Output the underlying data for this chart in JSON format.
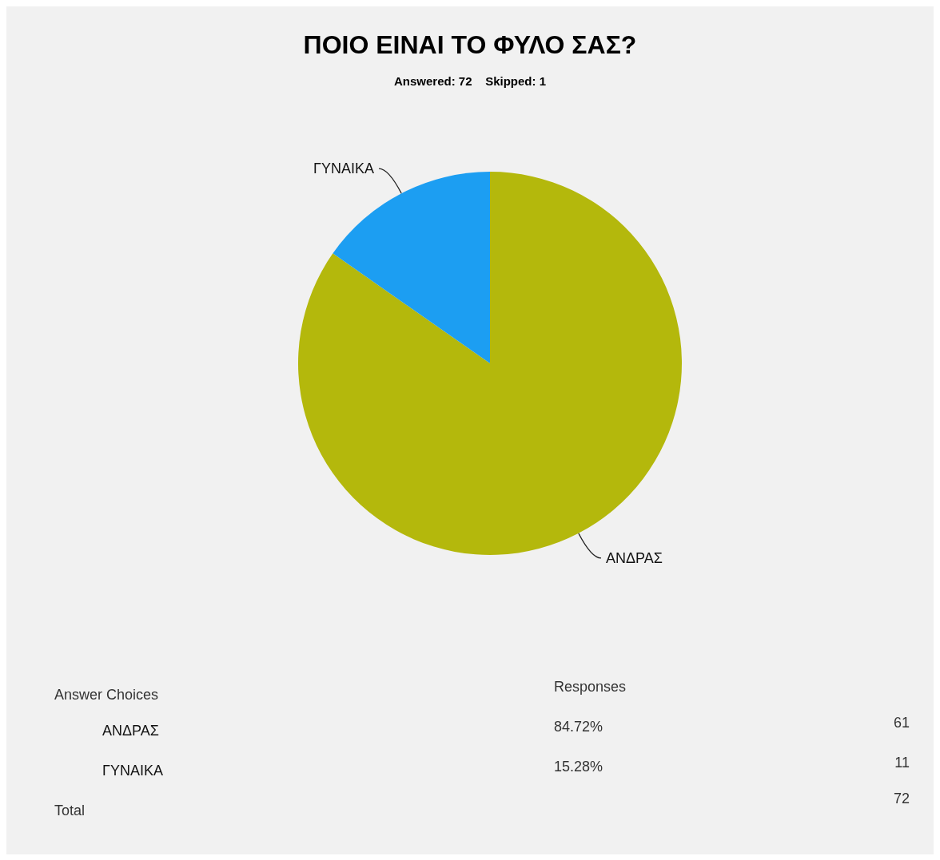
{
  "chart_data": {
    "type": "pie",
    "title": "ΠΟΙΟ ΕΙΝΑΙ ΤΟ ΦΥΛΟ ΣΑΣ?",
    "subtitle": "Answered: 72    Skipped: 1",
    "categories": [
      "ΑΝΔΡΑΣ",
      "ΓΥΝΑΙΚΑ"
    ],
    "values": [
      84.72,
      15.28
    ],
    "colors": [
      "#b4b80c",
      "#1c9ef2"
    ],
    "annotations": [
      "Answer Choices",
      "Responses",
      "61",
      "11",
      "Total",
      "72",
      "84.72%",
      "15.28%"
    ]
  }
}
